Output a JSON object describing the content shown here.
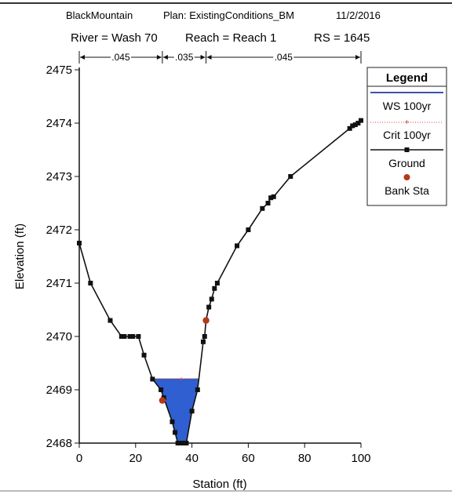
{
  "header": {
    "line1": {
      "project": "BlackMountain",
      "plan": "Plan: ExistingConditions_BM",
      "date": "11/2/2016"
    },
    "line2": {
      "river": "River = Wash 70",
      "reach": "Reach = Reach 1",
      "rs": "RS = 1645"
    }
  },
  "chart_data": {
    "type": "line",
    "xlabel": "Station (ft)",
    "ylabel": "Elevation (ft)",
    "xlim": [
      0,
      100
    ],
    "ylim": [
      2468,
      2475
    ],
    "x_ticks": [
      0,
      20,
      40,
      60,
      80,
      100
    ],
    "y_ticks": [
      2468,
      2469,
      2470,
      2471,
      2472,
      2473,
      2474,
      2475
    ],
    "grid": false,
    "legend": {
      "title": "Legend",
      "placement": "right",
      "entries": [
        {
          "label": "WS 100yr",
          "style": "solid-line",
          "color": "#3a55a0"
        },
        {
          "label": "Crit 100yr",
          "style": "dotted-plus",
          "color": "#cc4444"
        },
        {
          "label": "Ground",
          "style": "line-square",
          "color": "#111111"
        },
        {
          "label": "Bank Sta",
          "style": "dot",
          "color": "#b5381b"
        }
      ]
    },
    "mannings_n": [
      {
        "label": ".045",
        "from": 0,
        "to": 29.5
      },
      {
        "label": ".035",
        "from": 29.5,
        "to": 45
      },
      {
        "label": ".045",
        "from": 45,
        "to": 100
      }
    ],
    "ground": {
      "name": "Ground",
      "x": [
        0,
        4,
        11,
        15,
        16,
        18,
        19,
        21,
        23,
        26,
        29,
        30,
        33,
        34,
        35,
        36,
        37,
        38,
        40,
        42,
        44,
        44.5,
        45,
        46,
        47,
        48,
        49,
        56,
        60,
        65,
        67,
        68,
        69,
        75,
        96,
        97,
        98,
        99,
        100
      ],
      "y": [
        2471.75,
        2471.0,
        2470.3,
        2470.0,
        2470.0,
        2470.0,
        2470.0,
        2470.0,
        2469.65,
        2469.2,
        2469.0,
        2468.85,
        2468.4,
        2468.2,
        2468.0,
        2468.0,
        2468.0,
        2468.0,
        2468.6,
        2469.0,
        2469.9,
        2470.0,
        2470.3,
        2470.55,
        2470.7,
        2470.9,
        2471.0,
        2471.7,
        2472.0,
        2472.4,
        2472.5,
        2472.6,
        2472.62,
        2473.0,
        2473.9,
        2473.95,
        2473.97,
        2474.0,
        2474.05
      ]
    },
    "water_surface": {
      "name": "WS 100yr",
      "elevation": 2469.2
    },
    "critical": {
      "name": "Crit 100yr",
      "elevation": 2469.2
    },
    "bank_stations": {
      "name": "Bank Sta",
      "x": [
        29.5,
        45
      ],
      "y": [
        2468.8,
        2470.3
      ]
    }
  }
}
